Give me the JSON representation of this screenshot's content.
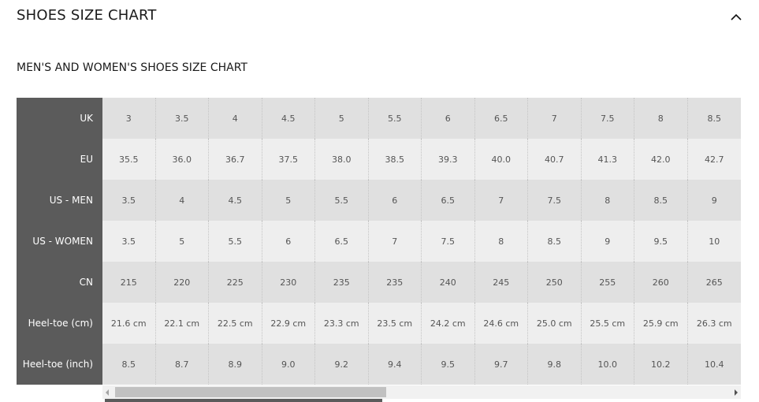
{
  "header": {
    "title": "SHOES SIZE CHART",
    "toggle_icon": "chevron-up-icon"
  },
  "subtitle": "MEN'S AND WOMEN'S SHOES SIZE CHART",
  "colors": {
    "header_column": "#5b5b5b",
    "row_dark": "#e0e0e0",
    "row_light": "#eeeeee"
  },
  "rows": [
    {
      "label": "UK",
      "values": [
        "3",
        "3.5",
        "4",
        "4.5",
        "5",
        "5.5",
        "6",
        "6.5",
        "7",
        "7.5",
        "8",
        "8.5"
      ]
    },
    {
      "label": "EU",
      "values": [
        "35.5",
        "36.0",
        "36.7",
        "37.5",
        "38.0",
        "38.5",
        "39.3",
        "40.0",
        "40.7",
        "41.3",
        "42.0",
        "42.7"
      ]
    },
    {
      "label": "US - MEN",
      "values": [
        "3.5",
        "4",
        "4.5",
        "5",
        "5.5",
        "6",
        "6.5",
        "7",
        "7.5",
        "8",
        "8.5",
        "9"
      ]
    },
    {
      "label": "US - WOMEN",
      "values": [
        "3.5",
        "5",
        "5.5",
        "6",
        "6.5",
        "7",
        "7.5",
        "8",
        "8.5",
        "9",
        "9.5",
        "10"
      ]
    },
    {
      "label": "CN",
      "values": [
        "215",
        "220",
        "225",
        "230",
        "235",
        "235",
        "240",
        "245",
        "250",
        "255",
        "260",
        "265"
      ]
    },
    {
      "label": "Heel-toe (cm)",
      "values": [
        "21.6 cm",
        "22.1 cm",
        "22.5 cm",
        "22.9 cm",
        "23.3 cm",
        "23.5 cm",
        "24.2 cm",
        "24.6 cm",
        "25.0 cm",
        "25.5 cm",
        "25.9 cm",
        "26.3 cm"
      ]
    },
    {
      "label": "Heel-toe (inch)",
      "values": [
        "8.5",
        "8.7",
        "8.9",
        "9.0",
        "9.2",
        "9.4",
        "9.5",
        "9.7",
        "9.8",
        "10.0",
        "10.2",
        "10.4"
      ]
    }
  ]
}
